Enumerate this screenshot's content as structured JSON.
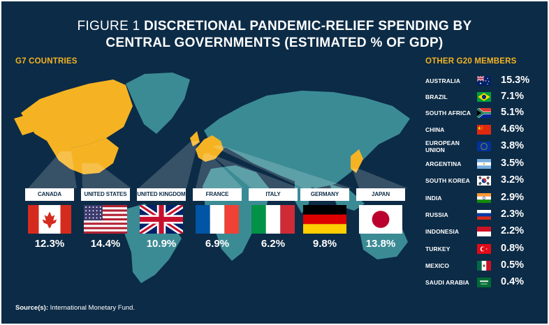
{
  "title": {
    "prefix": "FIGURE 1",
    "line1": "DISCRETIONAL PANDEMIC-RELIEF SPENDING BY",
    "line2": "CENTRAL GOVERNMENTS (ESTIMATED % OF GDP)"
  },
  "colors": {
    "background": "#0c2b46",
    "map": "#3b8b95",
    "highlight": "#f5b323",
    "text": "#ffffff"
  },
  "chart_data": {
    "type": "table",
    "unit": "% of GDP",
    "g7": {
      "heading": "G7 COUNTRIES",
      "items": [
        {
          "name": "CANADA",
          "flag": "canada-flag-icon",
          "value": 12.3,
          "value_label": "12.3%"
        },
        {
          "name": "UNITED STATES",
          "flag": "us-flag-icon",
          "value": 14.4,
          "value_label": "14.4%"
        },
        {
          "name": "UNITED KINGDOM",
          "flag": "uk-flag-icon",
          "value": 10.9,
          "value_label": "10.9%"
        },
        {
          "name": "FRANCE",
          "flag": "france-flag-icon",
          "value": 6.9,
          "value_label": "6.9%"
        },
        {
          "name": "ITALY",
          "flag": "italy-flag-icon",
          "value": 6.2,
          "value_label": "6.2%"
        },
        {
          "name": "GERMANY",
          "flag": "germany-flag-icon",
          "value": 9.8,
          "value_label": "9.8%"
        },
        {
          "name": "JAPAN",
          "flag": "japan-flag-icon",
          "value": 13.8,
          "value_label": "13.8%"
        }
      ]
    },
    "g20": {
      "heading": "OTHER G20 MEMBERS",
      "items": [
        {
          "name": "AUSTRALIA",
          "flag": "australia-flag-icon",
          "value": 15.3,
          "value_label": "15.3%"
        },
        {
          "name": "BRAZIL",
          "flag": "brazil-flag-icon",
          "value": 7.1,
          "value_label": "7.1%"
        },
        {
          "name": "SOUTH AFRICA",
          "flag": "south-africa-flag-icon",
          "value": 5.1,
          "value_label": "5.1%"
        },
        {
          "name": "CHINA",
          "flag": "china-flag-icon",
          "value": 4.6,
          "value_label": "4.6%"
        },
        {
          "name": "EUROPEAN UNION",
          "flag": "eu-flag-icon",
          "value": 3.8,
          "value_label": "3.8%"
        },
        {
          "name": "ARGENTINA",
          "flag": "argentina-flag-icon",
          "value": 3.5,
          "value_label": "3.5%"
        },
        {
          "name": "SOUTH KOREA",
          "flag": "south-korea-flag-icon",
          "value": 3.2,
          "value_label": "3.2%"
        },
        {
          "name": "INDIA",
          "flag": "india-flag-icon",
          "value": 2.9,
          "value_label": "2.9%"
        },
        {
          "name": "RUSSIA",
          "flag": "russia-flag-icon",
          "value": 2.3,
          "value_label": "2.3%"
        },
        {
          "name": "INDONESIA",
          "flag": "indonesia-flag-icon",
          "value": 2.2,
          "value_label": "2.2%"
        },
        {
          "name": "TURKEY",
          "flag": "turkey-flag-icon",
          "value": 0.8,
          "value_label": "0.8%"
        },
        {
          "name": "MEXICO",
          "flag": "mexico-flag-icon",
          "value": 0.5,
          "value_label": "0.5%"
        },
        {
          "name": "SAUDI ARABIA",
          "flag": "saudi-arabia-flag-icon",
          "value": 0.4,
          "value_label": "0.4%"
        }
      ]
    }
  },
  "source": {
    "label": "Source(s):",
    "text": " International Monetary Fund."
  }
}
